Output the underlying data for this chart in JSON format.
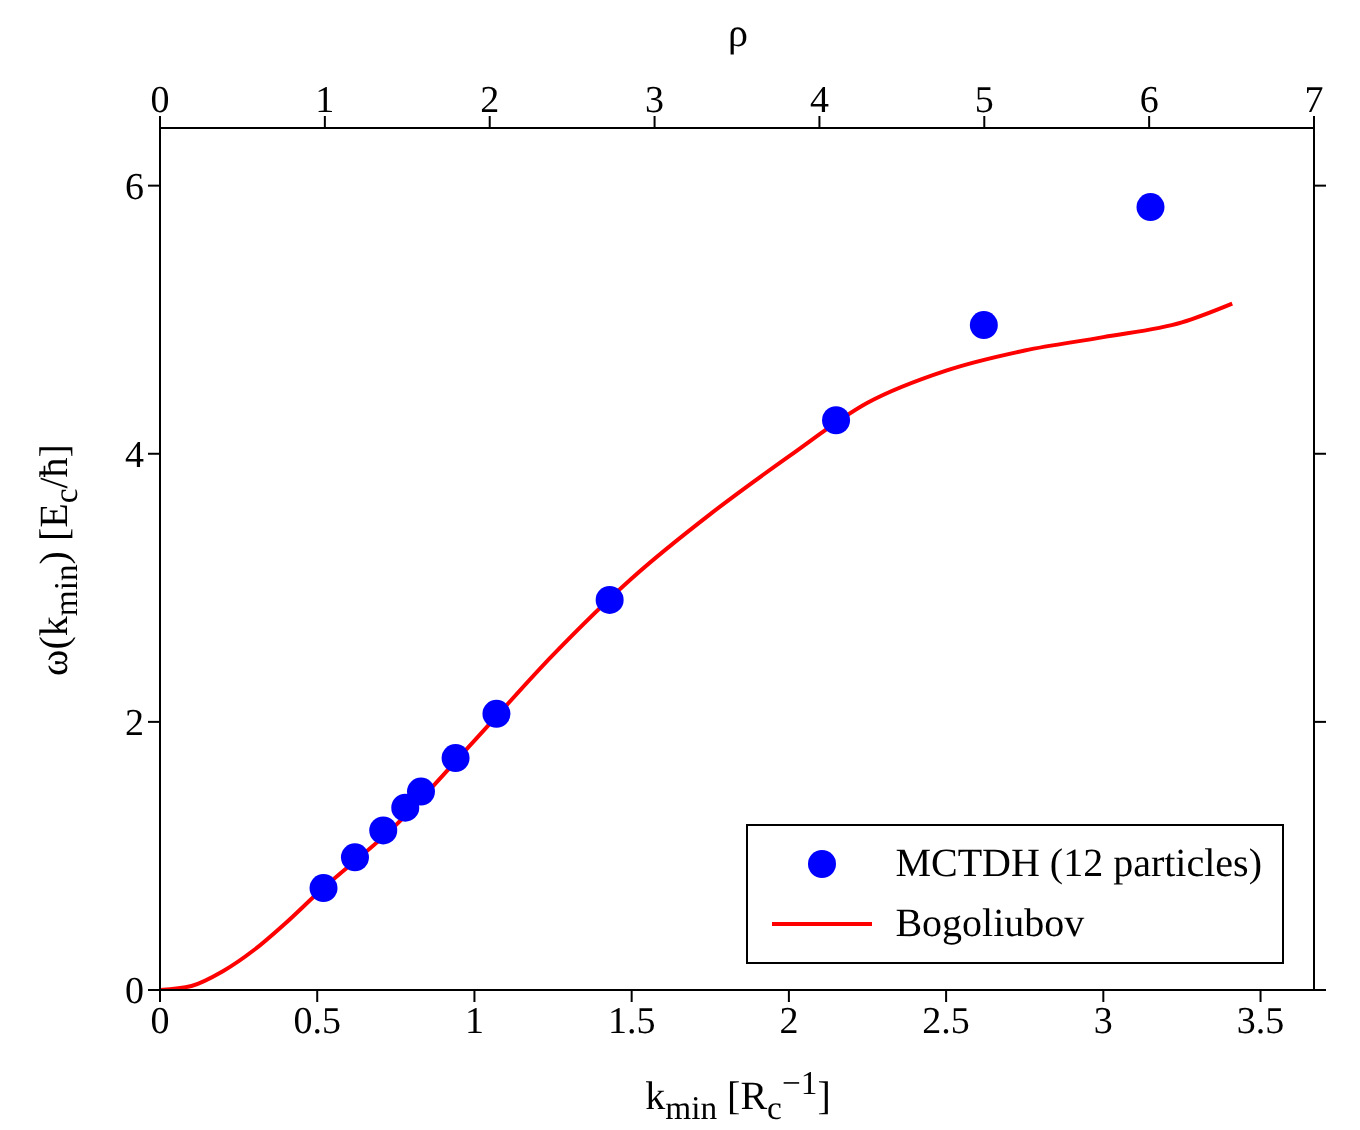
{
  "chart_data": {
    "type": "scatter",
    "xlabel": "k$_{min}$ [R$_{c}$$^{−1}$]",
    "ylabel": "ω(k$_{min}$) [E$_{c}$/ħ]",
    "x2label": "ρ",
    "xlim": [
      0,
      3.67
    ],
    "xticks": [
      0,
      0.5,
      1,
      1.5,
      2,
      2.5,
      3,
      3.5
    ],
    "x2lim": [
      0,
      7
    ],
    "x2ticks": [
      0,
      1,
      2,
      3,
      4,
      5,
      6,
      7
    ],
    "ylim": [
      0,
      6.43
    ],
    "yticks": [
      0,
      2,
      4,
      6
    ],
    "grid": false,
    "legend": "bottom right",
    "series": [
      {
        "name": "MCTDH (12 particles)",
        "type": "scatter",
        "marker": "circle",
        "color": "#0000ff",
        "x": [
          0.52,
          0.62,
          0.71,
          0.78,
          0.83,
          0.94,
          1.07,
          1.43,
          2.15,
          2.62,
          3.15
        ],
        "values": [
          0.76,
          0.99,
          1.19,
          1.36,
          1.48,
          1.73,
          2.06,
          2.91,
          4.25,
          4.96,
          5.84
        ]
      },
      {
        "name": "Bogoliubov",
        "type": "line",
        "marker": "none",
        "line_style": "solid",
        "color": "#ff0000",
        "x": [
          0,
          0.1,
          0.2,
          0.3,
          0.4,
          0.5,
          0.75,
          1.0,
          1.25,
          1.5,
          1.75,
          2.0,
          2.25,
          2.5,
          2.75,
          3.0,
          3.25,
          3.41
        ],
        "values": [
          0,
          0.03,
          0.14,
          0.3,
          0.5,
          0.72,
          1.23,
          1.86,
          2.5,
          3.07,
          3.55,
          3.98,
          4.38,
          4.62,
          4.77,
          4.87,
          4.98,
          5.12
        ]
      }
    ]
  }
}
